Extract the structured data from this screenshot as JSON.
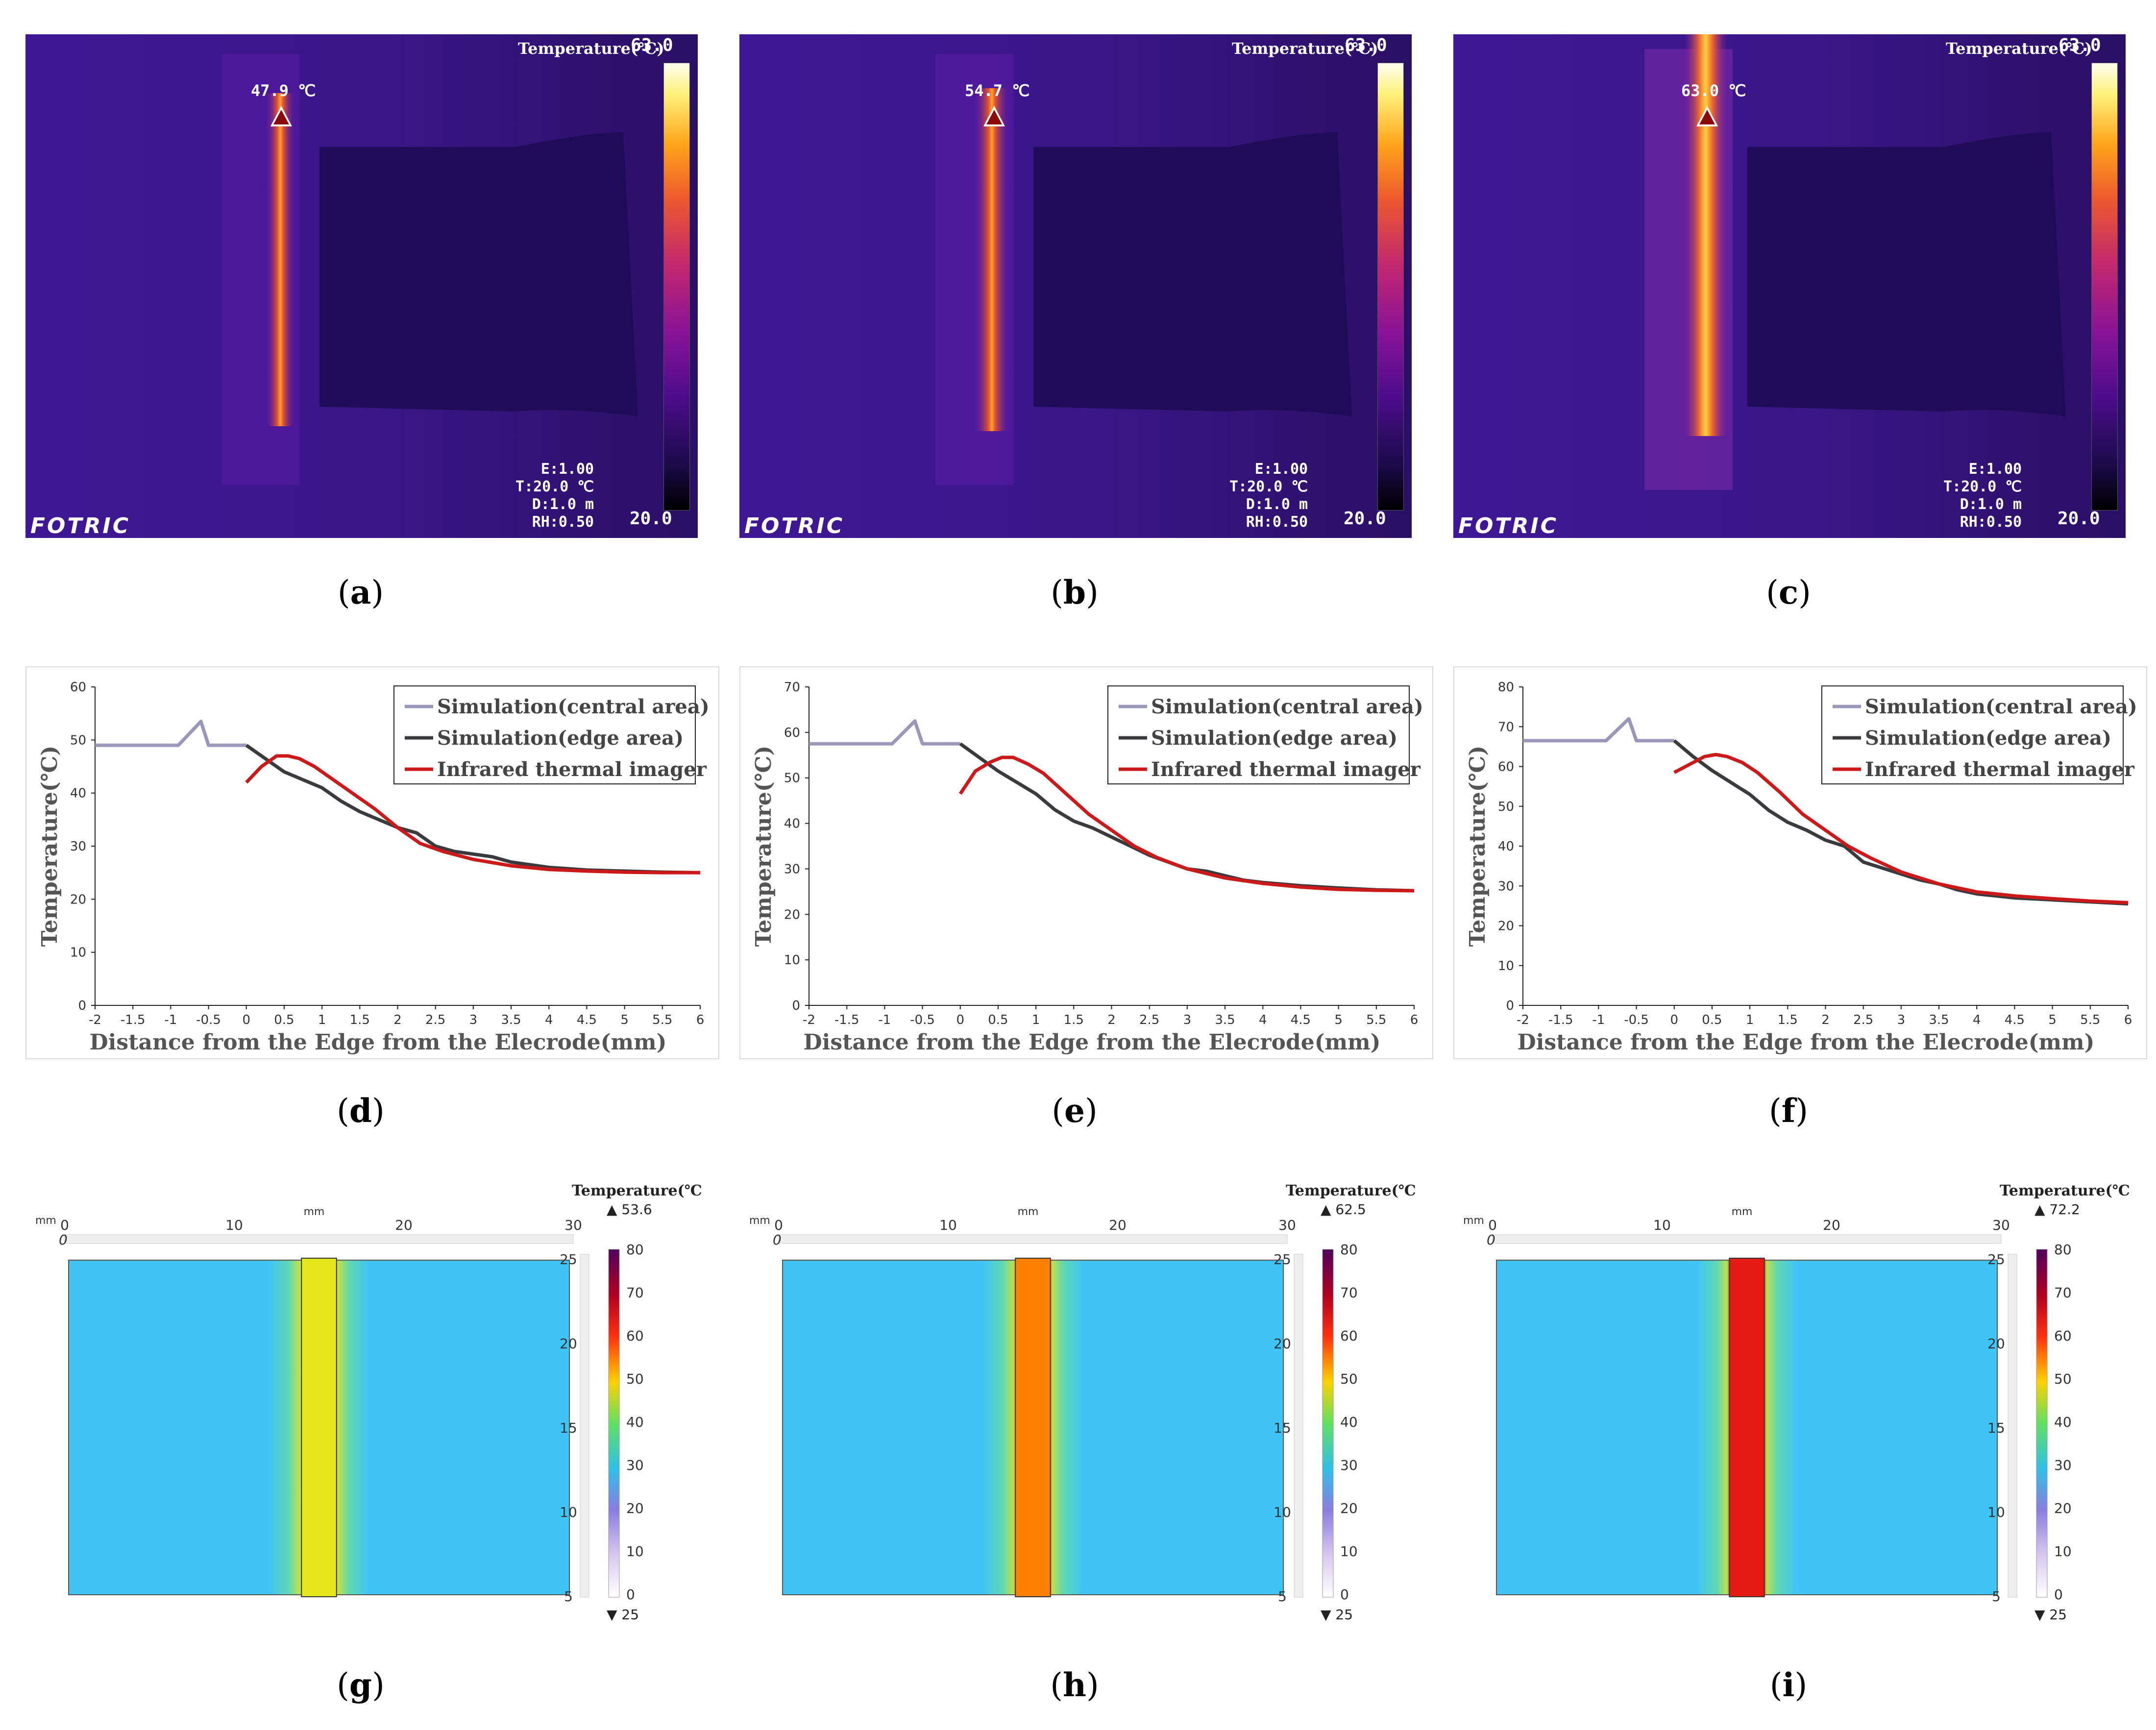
{
  "thermal_panels": [
    {
      "id": "a",
      "colorbar_title": "Temperature(℃)",
      "max": "63.0",
      "min": "20.0",
      "hotspot": "47.9 ℃",
      "params": [
        "E:1.00",
        "T:20.0 ℃",
        "D:1.0 m",
        "RH:0.50"
      ],
      "brand": "FOTRIC",
      "caption": "a"
    },
    {
      "id": "b",
      "colorbar_title": "Temperature(℃)",
      "max": "63.0",
      "min": "20.0",
      "hotspot": "54.7 ℃",
      "params": [
        "E:1.00",
        "T:20.0 ℃",
        "D:1.0 m",
        "RH:0.50"
      ],
      "brand": "FOTRIC",
      "caption": "b"
    },
    {
      "id": "c",
      "colorbar_title": "Temperature(℃)",
      "max": "63.0",
      "min": "20.0",
      "hotspot": "63.0 ℃",
      "params": [
        "E:1.00",
        "T:20.0 ℃",
        "D:1.0 m",
        "RH:0.50"
      ],
      "brand": "FOTRIC",
      "caption": "c"
    }
  ],
  "chart_captions": [
    "d",
    "e",
    "f"
  ],
  "sim_panels": [
    {
      "caption": "g",
      "title": "Temperature(℃)",
      "max_label": "▲ 53.6",
      "min_label": "▼ 25",
      "unit": "mm",
      "center_color": "#e5e61a"
    },
    {
      "caption": "h",
      "title": "Temperature(℃)",
      "max_label": "▲ 62.5",
      "min_label": "▼ 25",
      "unit": "mm",
      "center_color": "#ff7f00"
    },
    {
      "caption": "i",
      "title": "Temperature(℃)",
      "max_label": "▲ 72.2",
      "min_label": "▼ 25",
      "unit": "mm",
      "center_color": "#e51a14"
    }
  ],
  "sim_axis": {
    "x_ticks": [
      "0",
      "10",
      "20",
      "30"
    ],
    "y_ticks": [
      "25",
      "20",
      "15",
      "10",
      "5"
    ],
    "y_zero": "0",
    "colorbar_ticks": [
      "80",
      "70",
      "60",
      "50",
      "40",
      "30",
      "20",
      "10",
      "0"
    ]
  },
  "chart_data": [
    {
      "type": "line",
      "title": "",
      "xlabel": "Distance from the Edge from the Elecrode(mm)",
      "ylabel": "Temperature(℃)",
      "xlim": [
        -2,
        6
      ],
      "ylim": [
        0,
        60
      ],
      "xticks": [
        -2,
        -1.5,
        -1,
        -0.5,
        0,
        0.5,
        1,
        1.5,
        2,
        2.5,
        3,
        3.5,
        4,
        4.5,
        5,
        5.5,
        6
      ],
      "yticks": [
        0,
        10,
        20,
        30,
        40,
        50,
        60
      ],
      "legend": "top-right",
      "series": [
        {
          "name": "Simulation(central area)",
          "color": "#9b97b8",
          "x": [
            -2,
            -1.4,
            -0.9,
            -0.6,
            -0.5,
            0
          ],
          "y": [
            49,
            49,
            49,
            53.5,
            49,
            49
          ]
        },
        {
          "name": "Simulation(edge area)",
          "color": "#3a3a3f",
          "x": [
            0,
            0.25,
            0.5,
            0.75,
            1,
            1.25,
            1.5,
            1.75,
            2,
            2.25,
            2.5,
            2.75,
            3,
            3.25,
            3.5,
            3.75,
            4,
            4.5,
            5,
            5.5,
            6
          ],
          "y": [
            49,
            46.5,
            44,
            42.5,
            41,
            38.5,
            36.5,
            35,
            33.5,
            32.5,
            30,
            29,
            28.5,
            28,
            27,
            26.5,
            26,
            25.5,
            25.3,
            25.1,
            25
          ]
        },
        {
          "name": "Infrared thermal imager",
          "color": "#cc1a1a",
          "x": [
            0,
            0.2,
            0.4,
            0.55,
            0.7,
            0.9,
            1.1,
            1.4,
            1.7,
            2,
            2.3,
            2.6,
            3,
            3.5,
            4,
            4.5,
            5,
            5.5,
            6
          ],
          "y": [
            42,
            45,
            47,
            47,
            46.5,
            45,
            43,
            40,
            37,
            33.5,
            30.5,
            29,
            27.5,
            26.3,
            25.6,
            25.3,
            25.1,
            25,
            25
          ]
        }
      ]
    },
    {
      "type": "line",
      "title": "",
      "xlabel": "Distance from the Edge from the Elecrode(mm)",
      "ylabel": "Temperature(℃)",
      "xlim": [
        -2,
        6
      ],
      "ylim": [
        0,
        70
      ],
      "xticks": [
        -2,
        -1.5,
        -1,
        -0.5,
        0,
        0.5,
        1,
        1.5,
        2,
        2.5,
        3,
        3.5,
        4,
        4.5,
        5,
        5.5,
        6
      ],
      "yticks": [
        0,
        10,
        20,
        30,
        40,
        50,
        60,
        70
      ],
      "legend": "top-right",
      "series": [
        {
          "name": "Simulation(central area)",
          "color": "#9b97b8",
          "x": [
            -2,
            -1.4,
            -0.9,
            -0.6,
            -0.5,
            0
          ],
          "y": [
            57.5,
            57.5,
            57.5,
            62.5,
            57.5,
            57.5
          ]
        },
        {
          "name": "Simulation(edge area)",
          "color": "#3a3a3f",
          "x": [
            0,
            0.25,
            0.5,
            0.75,
            1,
            1.25,
            1.5,
            1.75,
            2,
            2.25,
            2.5,
            2.75,
            3,
            3.25,
            3.5,
            3.75,
            4,
            4.5,
            5,
            5.5,
            6
          ],
          "y": [
            57.5,
            54.5,
            51.5,
            49,
            46.5,
            43,
            40.5,
            39,
            37,
            35,
            33,
            31.5,
            30,
            29.5,
            28.5,
            27.5,
            27,
            26.3,
            25.8,
            25.4,
            25.2
          ]
        },
        {
          "name": "Infrared thermal imager",
          "color": "#cc1a1a",
          "x": [
            0,
            0.2,
            0.4,
            0.55,
            0.7,
            0.9,
            1.1,
            1.4,
            1.7,
            2,
            2.3,
            2.6,
            3,
            3.5,
            4,
            4.5,
            5,
            5.5,
            6
          ],
          "y": [
            46.5,
            51.5,
            53.5,
            54.5,
            54.5,
            53,
            51,
            46.5,
            42,
            38.5,
            35,
            32.5,
            30,
            28,
            26.8,
            26,
            25.5,
            25.3,
            25.2
          ]
        }
      ]
    },
    {
      "type": "line",
      "title": "",
      "xlabel": "Distance from the Edge from the Elecrode(mm)",
      "ylabel": "Temperature(℃)",
      "xlim": [
        -2,
        6
      ],
      "ylim": [
        0,
        80
      ],
      "xticks": [
        -2,
        -1.5,
        -1,
        -0.5,
        0,
        0.5,
        1,
        1.5,
        2,
        2.5,
        3,
        3.5,
        4,
        4.5,
        5,
        5.5,
        6
      ],
      "yticks": [
        0,
        10,
        20,
        30,
        40,
        50,
        60,
        70,
        80
      ],
      "legend": "top-right",
      "series": [
        {
          "name": "Simulation(central area)",
          "color": "#9b97b8",
          "x": [
            -2,
            -1.4,
            -0.9,
            -0.6,
            -0.5,
            0
          ],
          "y": [
            66.5,
            66.5,
            66.5,
            72,
            66.5,
            66.5
          ]
        },
        {
          "name": "Simulation(edge area)",
          "color": "#3a3a3f",
          "x": [
            0,
            0.25,
            0.5,
            0.75,
            1,
            1.25,
            1.5,
            1.75,
            2,
            2.25,
            2.5,
            2.75,
            3,
            3.25,
            3.5,
            3.75,
            4,
            4.5,
            5,
            5.5,
            6
          ],
          "y": [
            66.5,
            62.5,
            59,
            56,
            53,
            49,
            46,
            44,
            41.5,
            40,
            36,
            34.5,
            33,
            31.5,
            30.5,
            29,
            28,
            27,
            26.5,
            26,
            25.5
          ]
        },
        {
          "name": "Infrared thermal imager",
          "color": "#cc1a1a",
          "x": [
            0,
            0.2,
            0.4,
            0.55,
            0.7,
            0.9,
            1.1,
            1.4,
            1.7,
            2,
            2.3,
            2.6,
            3,
            3.5,
            4,
            4.5,
            5,
            5.5,
            6
          ],
          "y": [
            58.5,
            60.5,
            62.5,
            63,
            62.5,
            61,
            58.5,
            53.5,
            48,
            44,
            40,
            37,
            33.5,
            30.5,
            28.5,
            27.5,
            26.8,
            26.2,
            25.8
          ]
        }
      ]
    }
  ]
}
